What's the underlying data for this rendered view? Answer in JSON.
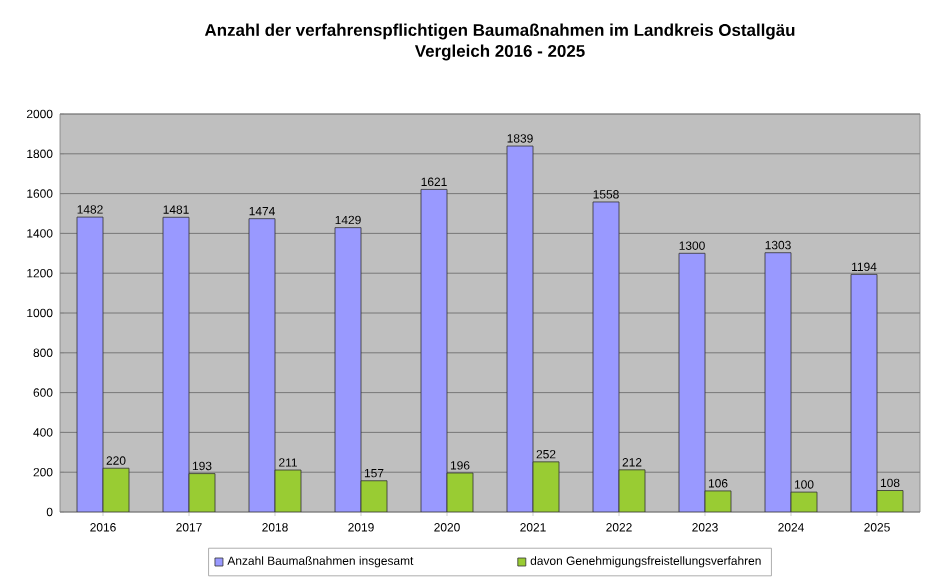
{
  "chart_data": {
    "type": "bar",
    "title": "Anzahl der verfahrenspflichtigen Baumaßnahmen im Landkreis Ostallgäu",
    "subtitle": "Vergleich 2016 - 2025",
    "categories": [
      "2016",
      "2017",
      "2018",
      "2019",
      "2020",
      "2021",
      "2022",
      "2023",
      "2024",
      "2025"
    ],
    "series": [
      {
        "name": "Anzahl Baumaßnahmen insgesamt",
        "color": "#9999ff",
        "values": [
          1482,
          1481,
          1474,
          1429,
          1621,
          1839,
          1558,
          1300,
          1303,
          1194
        ]
      },
      {
        "name": "davon Genehmigungsfreistellungsverfahren",
        "color": "#99cc33",
        "values": [
          220,
          193,
          211,
          157,
          196,
          252,
          212,
          106,
          100,
          108
        ]
      }
    ],
    "ylim": [
      0,
      2000
    ],
    "yticks": [
      0,
      200,
      400,
      600,
      800,
      1000,
      1200,
      1400,
      1600,
      1800,
      2000
    ],
    "grid": "y",
    "legend": "bottom",
    "data_labels": true
  }
}
